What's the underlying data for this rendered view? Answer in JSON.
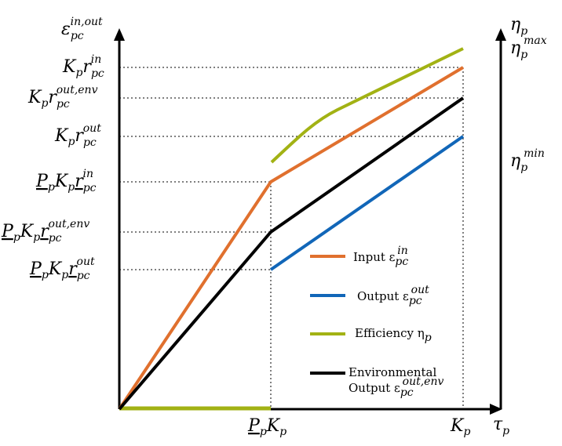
{
  "left_axis": {
    "label": "ε",
    "sub": "pc",
    "sup": "in,out"
  },
  "right_axis": {
    "label": "η",
    "sub": "p"
  },
  "x_axis": {
    "label": "τ",
    "sub": "p"
  },
  "y_ticks": {
    "t1": {
      "a": "K",
      "a_sub": "p",
      "b": "r",
      "b_sub": "pc",
      "b_sup": "in"
    },
    "t2": {
      "a": "K",
      "a_sub": "p",
      "b": "r",
      "b_sub": "pc",
      "b_sup": "out,env"
    },
    "t3": {
      "a": "K",
      "a_sub": "p",
      "b": "r",
      "b_sub": "pc",
      "b_sup": "out"
    },
    "t4": {
      "p": "P",
      "p_sub": "p",
      "a": "K",
      "a_sub": "p",
      "b": "r",
      "b_sub": "pc",
      "b_sup": "in"
    },
    "t5": {
      "p": "P",
      "p_sub": "p",
      "a": "K",
      "a_sub": "p",
      "b": "r",
      "b_sub": "pc",
      "b_sup": "out,env"
    },
    "t6": {
      "p": "P",
      "p_sub": "p",
      "a": "K",
      "a_sub": "p",
      "b": "r",
      "b_sub": "pc",
      "b_sup": "out"
    }
  },
  "right_ticks": {
    "max": {
      "sym": "η",
      "sub": "p",
      "sup": "max"
    },
    "min": {
      "sym": "η",
      "sub": "p",
      "sup": "min"
    }
  },
  "x_ticks": {
    "pk": {
      "p": "P",
      "p_sub": "p",
      "k": "K",
      "k_sub": "p"
    },
    "k": {
      "k": "K",
      "k_sub": "p"
    }
  },
  "legend": {
    "input": {
      "text": "Input ε",
      "sub": "pc",
      "sup": "in"
    },
    "output": {
      "text": "Output ε",
      "sub": "pc",
      "sup": "out"
    },
    "efficiency": {
      "text": "Efficiency η",
      "sub": "p"
    },
    "env1": "Environmental",
    "env2": {
      "text": "Output ε",
      "sub": "pc",
      "sup": "out,env"
    }
  },
  "colors": {
    "input": "#e0702e",
    "output": "#1166b8",
    "efficiency": "#a2b214",
    "environmental": "#000000",
    "axis": "#000000"
  }
}
